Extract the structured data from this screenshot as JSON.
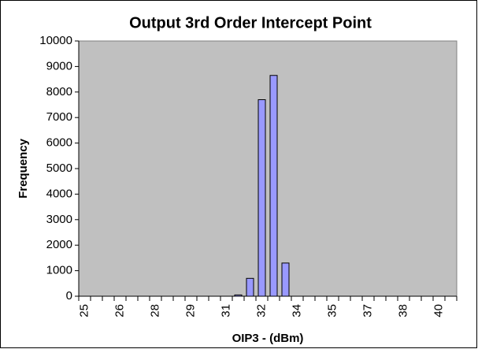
{
  "chart_data": {
    "type": "bar",
    "title": "Output 3rd Order Intercept Point",
    "x_label": "OIP3 - (dBm)",
    "y_label": "Frequency",
    "categories": [
      "25",
      null,
      null,
      "26",
      null,
      null,
      "28",
      null,
      null,
      "29",
      null,
      null,
      "31",
      null,
      null,
      "32",
      null,
      null,
      "34",
      null,
      null,
      "35",
      null,
      null,
      "37",
      null,
      null,
      "38",
      null,
      null,
      "40",
      null
    ],
    "values": [
      0,
      0,
      0,
      0,
      0,
      0,
      0,
      0,
      0,
      0,
      0,
      0,
      0,
      50,
      700,
      7700,
      8650,
      1300,
      0,
      0,
      0,
      0,
      0,
      0,
      0,
      0,
      0,
      0,
      0,
      0,
      0,
      0
    ],
    "color": "#9999ff",
    "plot_background": "#c0c0c0",
    "ylim": [
      0,
      10000
    ],
    "yticks": [
      0,
      1000,
      2000,
      3000,
      4000,
      5000,
      6000,
      7000,
      8000,
      9000,
      10000
    ]
  }
}
